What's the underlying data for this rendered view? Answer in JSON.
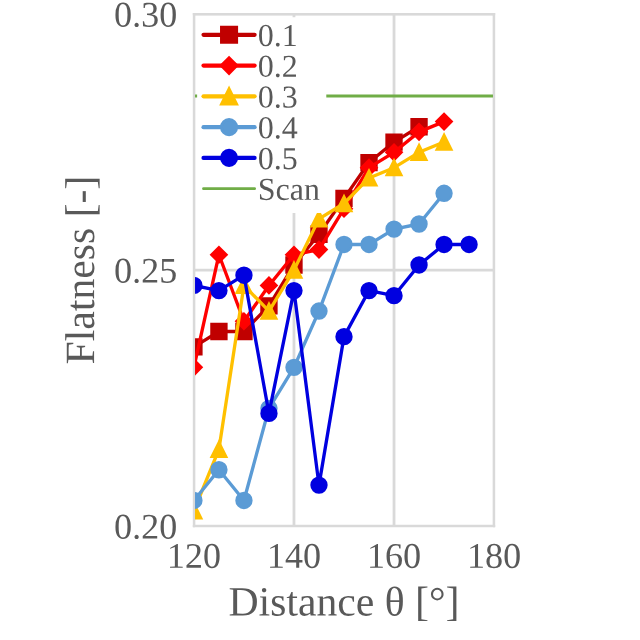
{
  "chart_data": {
    "type": "line",
    "xlabel": "Distance θ [°]",
    "ylabel": "Flatness [-]",
    "xlim": [
      120,
      180
    ],
    "xticks": [
      120,
      140,
      160,
      180
    ],
    "ylim": [
      0.2,
      0.3
    ],
    "yticks": [
      {
        "value": 0.2,
        "label": "0.20"
      },
      {
        "value": 0.25,
        "label": "0.25"
      },
      {
        "value": 0.3,
        "label": "0.30"
      }
    ],
    "grid": true,
    "legend": "top left",
    "series": [
      {
        "name": "0.1",
        "color": "#c00000",
        "marker": "square",
        "x": [
          120,
          125,
          130,
          135,
          140,
          145,
          150,
          155,
          160,
          165
        ],
        "values": [
          0.235,
          0.238,
          0.238,
          0.243,
          0.251,
          0.257,
          0.264,
          0.271,
          0.275,
          0.278
        ]
      },
      {
        "name": "0.2",
        "color": "#ff0000",
        "marker": "diamond",
        "x": [
          120,
          125,
          130,
          135,
          140,
          145,
          150,
          155,
          160,
          165,
          170
        ],
        "values": [
          0.231,
          0.253,
          0.24,
          0.247,
          0.253,
          0.254,
          0.262,
          0.27,
          0.273,
          0.277,
          0.279
        ]
      },
      {
        "name": "0.3",
        "color": "#ffc000",
        "marker": "triangle",
        "x": [
          120,
          125,
          130,
          135,
          140,
          145,
          150,
          155,
          160,
          165,
          170
        ],
        "values": [
          0.203,
          0.215,
          0.247,
          0.242,
          0.25,
          0.26,
          0.263,
          0.268,
          0.27,
          0.273,
          0.275
        ]
      },
      {
        "name": "0.4",
        "color": "#5b9bd5",
        "marker": "circle",
        "x": [
          120,
          125,
          130,
          135,
          140,
          145,
          150,
          155,
          160,
          165,
          170
        ],
        "values": [
          0.205,
          0.211,
          0.205,
          0.223,
          0.231,
          0.242,
          0.255,
          0.255,
          0.258,
          0.259,
          0.265
        ]
      },
      {
        "name": "0.5",
        "color": "#0000e0",
        "marker": "circle",
        "x": [
          120,
          125,
          130,
          135,
          140,
          145,
          150,
          155,
          160,
          165,
          170,
          175
        ],
        "values": [
          0.247,
          0.246,
          0.249,
          0.222,
          0.246,
          0.208,
          0.237,
          0.246,
          0.245,
          0.251,
          0.255,
          0.255
        ]
      }
    ],
    "ref_lines": [
      {
        "axis": "y",
        "value": 0.284,
        "label": "Scan",
        "color": "#70ad47",
        "line_style": "solid"
      }
    ]
  }
}
